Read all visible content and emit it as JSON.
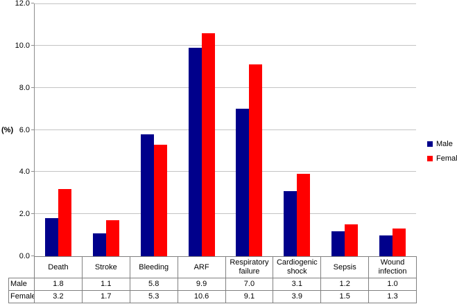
{
  "figure": {
    "kind": "clustered bar chart with data table",
    "title": ""
  },
  "chart_data": {
    "type": "bar",
    "categories": [
      "Death",
      "Stroke",
      "Bleeding",
      "ARF",
      "Respiratory failure",
      "Cardiogenic shock",
      "Sepsis",
      "Wound infection"
    ],
    "series": [
      {
        "name": "Male",
        "color": "#00008B",
        "values": [
          1.8,
          1.1,
          5.8,
          9.9,
          7.0,
          3.1,
          1.2,
          1.0
        ]
      },
      {
        "name": "Female",
        "color": "#FF0000",
        "values": [
          3.2,
          1.7,
          5.3,
          10.6,
          9.1,
          3.9,
          1.5,
          1.3
        ]
      }
    ],
    "title": "",
    "xlabel": "",
    "ylabel": "(%)",
    "ylim": [
      0,
      12
    ],
    "ytick_step": 2,
    "ytick_labels": [
      "0.0",
      "2.0",
      "4.0",
      "6.0",
      "8.0",
      "10.0",
      "12.0"
    ],
    "grid": true,
    "legend_position": "right",
    "data_table": {
      "row_headers": [
        "Male",
        "Female"
      ],
      "rows": [
        [
          "1.8",
          "1.1",
          "5.8",
          "9.9",
          "7.0",
          "3.1",
          "1.2",
          "1.0"
        ],
        [
          "3.2",
          "1.7",
          "5.3",
          "10.6",
          "9.1",
          "3.9",
          "1.5",
          "1.3"
        ]
      ]
    },
    "colors": {
      "male_bar": "#00008B",
      "female_bar": "#FF0000",
      "gridline": "#C3C3C3",
      "axis_line": "#8C8C8C",
      "table_border": "#7F7F7F",
      "text": "#000000"
    }
  }
}
